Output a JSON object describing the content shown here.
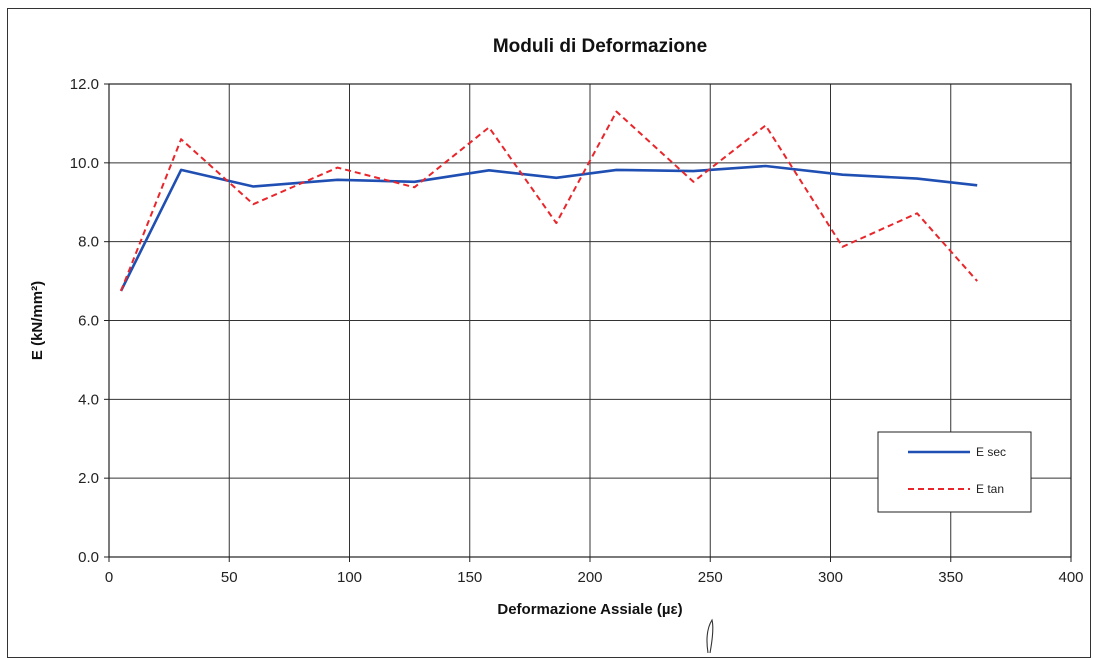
{
  "chart_data": {
    "type": "line",
    "title": "Moduli di Deformazione",
    "xlabel": "Deformazione Assiale (µε)",
    "ylabel": "E (kN/mm²)",
    "xlim": [
      0,
      400
    ],
    "ylim": [
      0,
      12
    ],
    "x_ticks": [
      "0",
      "50",
      "100",
      "150",
      "200",
      "250",
      "300",
      "350",
      "400"
    ],
    "y_ticks": [
      "0.0",
      "2.0",
      "4.0",
      "6.0",
      "8.0",
      "10.0",
      "12.0"
    ],
    "grid": true,
    "legend_position": "right",
    "series": [
      {
        "name": "E sec",
        "color": "#1f4fb3",
        "style": "solid",
        "x": [
          5,
          30,
          60,
          95,
          127,
          158,
          186,
          211,
          243,
          273,
          305,
          336,
          361
        ],
        "y": [
          6.75,
          9.82,
          9.4,
          9.57,
          9.52,
          9.81,
          9.62,
          9.82,
          9.79,
          9.92,
          9.7,
          9.6,
          9.43
        ]
      },
      {
        "name": "E tan",
        "color": "#e8262b",
        "style": "dashed",
        "x": [
          5,
          30,
          60,
          95,
          127,
          158,
          186,
          211,
          243,
          273,
          305,
          336,
          361
        ],
        "y": [
          6.75,
          10.6,
          8.95,
          9.88,
          9.38,
          10.9,
          8.47,
          11.3,
          9.52,
          10.95,
          7.87,
          8.72,
          7.0
        ]
      }
    ]
  }
}
